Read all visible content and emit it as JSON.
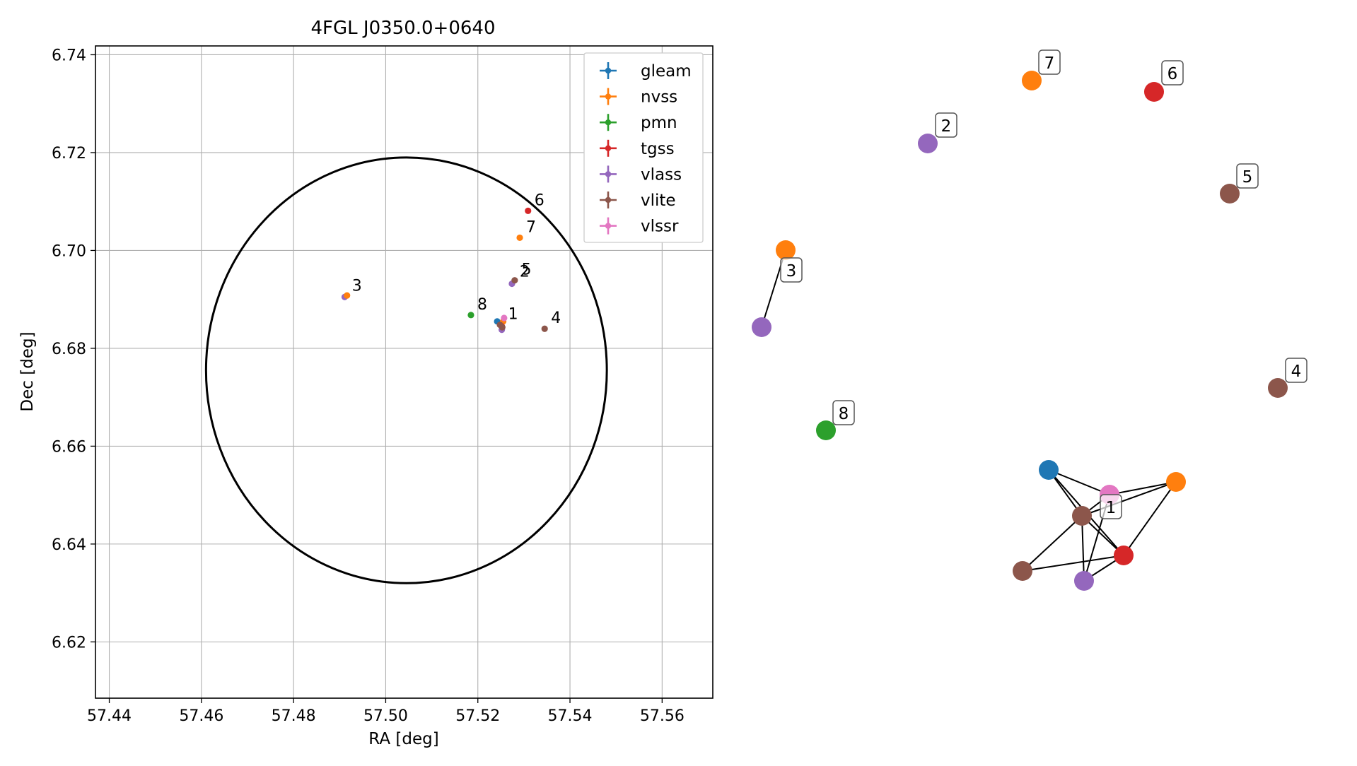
{
  "chart_data": [
    {
      "type": "scatter",
      "title": "4FGL J0350.0+0640",
      "xlabel": "RA [deg]",
      "ylabel": "Dec [deg]",
      "xlim": [
        57.437,
        57.571
      ],
      "ylim": [
        6.6085,
        6.7418
      ],
      "xticks": [
        57.44,
        57.46,
        57.48,
        57.5,
        57.52,
        57.54,
        57.56
      ],
      "xtick_labels": [
        "57.44",
        "57.46",
        "57.48",
        "57.50",
        "57.52",
        "57.54",
        "57.56"
      ],
      "yticks": [
        6.62,
        6.64,
        6.66,
        6.68,
        6.7,
        6.72,
        6.74
      ],
      "ytick_labels": [
        "6.62",
        "6.64",
        "6.66",
        "6.68",
        "6.70",
        "6.72",
        "6.74"
      ],
      "grid": true,
      "legend_position": "top-right",
      "legend": [
        {
          "name": "gleam",
          "color": "#1f77b4"
        },
        {
          "name": "nvss",
          "color": "#ff7f0e"
        },
        {
          "name": "pmn",
          "color": "#2ca02c"
        },
        {
          "name": "tgss",
          "color": "#d62728"
        },
        {
          "name": "vlass",
          "color": "#9467bd"
        },
        {
          "name": "vlite",
          "color": "#8c564b"
        },
        {
          "name": "vlssr",
          "color": "#e377c2"
        }
      ],
      "ellipse": {
        "center_ra": 57.5045,
        "center_dec": 6.6755,
        "semi_major_deg": 0.0435,
        "semi_minor_deg": 0.0435,
        "color": "#000000"
      },
      "points": [
        {
          "survey": "gleam",
          "ra": 57.5242,
          "dec": 6.6855
        },
        {
          "survey": "nvss",
          "ra": 57.5255,
          "dec": 6.6855
        },
        {
          "survey": "tgss",
          "ra": 57.5252,
          "dec": 6.6845
        },
        {
          "survey": "vlass",
          "ra": 57.5252,
          "dec": 6.6838
        },
        {
          "survey": "vlite",
          "ra": 57.5248,
          "dec": 6.6848
        },
        {
          "survey": "vlite",
          "ra": 57.5253,
          "dec": 6.6843
        },
        {
          "survey": "vlssr",
          "ra": 57.5257,
          "dec": 6.6862
        },
        {
          "survey": "vlass",
          "ra": 57.5274,
          "dec": 6.6932
        },
        {
          "survey": "vlite",
          "ra": 57.528,
          "dec": 6.6939
        },
        {
          "survey": "vlass",
          "ra": 57.4911,
          "dec": 6.6905
        },
        {
          "survey": "nvss",
          "ra": 57.4916,
          "dec": 6.6908
        },
        {
          "survey": "vlite",
          "ra": 57.5345,
          "dec": 6.684
        },
        {
          "survey": "tgss",
          "ra": 57.5309,
          "dec": 6.7081
        },
        {
          "survey": "nvss",
          "ra": 57.5291,
          "dec": 6.7026
        },
        {
          "survey": "pmn",
          "ra": 57.5185,
          "dec": 6.6868
        }
      ],
      "labels": [
        {
          "text": "1",
          "ra": 57.5252,
          "dec": 6.6848
        },
        {
          "text": "2",
          "ra": 57.5277,
          "dec": 6.6935
        },
        {
          "text": "3",
          "ra": 57.4913,
          "dec": 6.6906
        },
        {
          "text": "4",
          "ra": 57.5345,
          "dec": 6.684
        },
        {
          "text": "5",
          "ra": 57.5281,
          "dec": 6.6939
        },
        {
          "text": "6",
          "ra": 57.5309,
          "dec": 6.7081
        },
        {
          "text": "7",
          "ra": 57.5291,
          "dec": 6.7026
        },
        {
          "text": "8",
          "ra": 57.5185,
          "dec": 6.6868
        }
      ]
    },
    {
      "type": "network",
      "nodes": [
        {
          "id": "c1a",
          "color": "#1f77b4",
          "label": ""
        },
        {
          "id": "c1b",
          "color": "#ff7f0e",
          "label": ""
        },
        {
          "id": "c1c",
          "color": "#e377c2",
          "label": ""
        },
        {
          "id": "c1d",
          "color": "#8c564b",
          "label": "1"
        },
        {
          "id": "c1e",
          "color": "#d62728",
          "label": ""
        },
        {
          "id": "c1f",
          "color": "#8c564b",
          "label": ""
        },
        {
          "id": "c1g",
          "color": "#9467bd",
          "label": ""
        },
        {
          "id": "n2",
          "color": "#9467bd",
          "label": "2"
        },
        {
          "id": "n3a",
          "color": "#ff7f0e",
          "label": "3"
        },
        {
          "id": "n3b",
          "color": "#9467bd",
          "label": ""
        },
        {
          "id": "n4",
          "color": "#8c564b",
          "label": "4"
        },
        {
          "id": "n5",
          "color": "#8c564b",
          "label": "5"
        },
        {
          "id": "n6",
          "color": "#d62728",
          "label": "6"
        },
        {
          "id": "n7",
          "color": "#ff7f0e",
          "label": "7"
        },
        {
          "id": "n8",
          "color": "#2ca02c",
          "label": "8"
        }
      ],
      "edges": [
        [
          "c1a",
          "c1c"
        ],
        [
          "c1a",
          "c1d"
        ],
        [
          "c1a",
          "c1e"
        ],
        [
          "c1b",
          "c1c"
        ],
        [
          "c1b",
          "c1d"
        ],
        [
          "c1b",
          "c1e"
        ],
        [
          "c1c",
          "c1d"
        ],
        [
          "c1c",
          "c1g"
        ],
        [
          "c1d",
          "c1e"
        ],
        [
          "c1d",
          "c1f"
        ],
        [
          "c1d",
          "c1g"
        ],
        [
          "c1e",
          "c1f"
        ],
        [
          "c1e",
          "c1g"
        ],
        [
          "n3a",
          "n3b"
        ]
      ]
    }
  ]
}
